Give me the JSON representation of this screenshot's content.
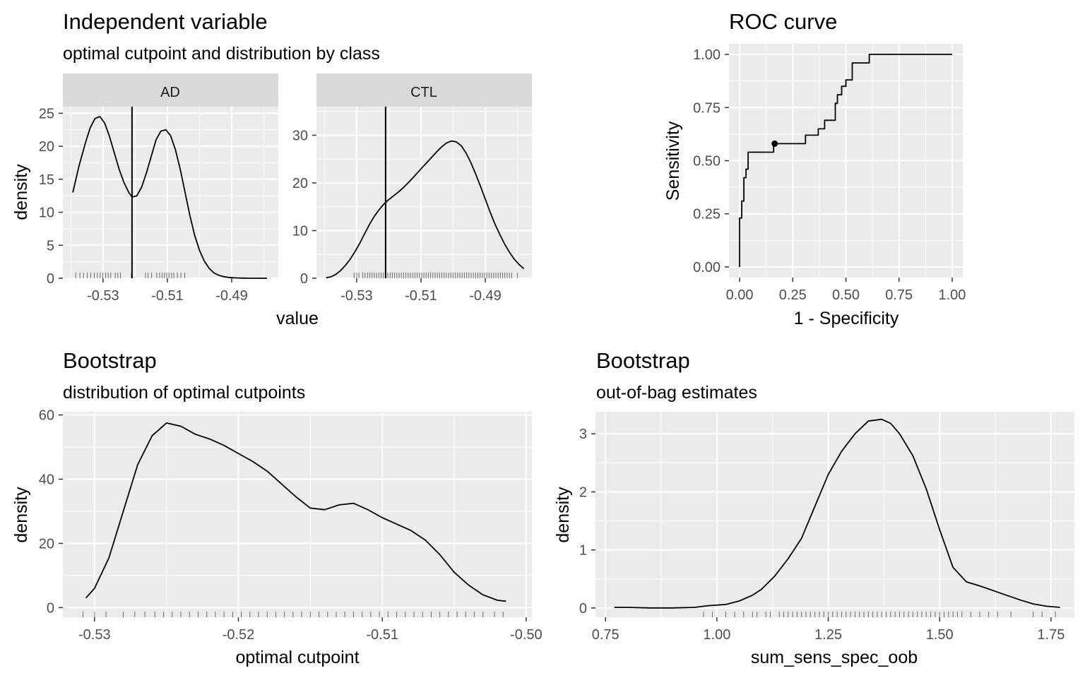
{
  "panels": {
    "indep": {
      "title": "Independent variable",
      "subtitle": "optimal cutpoint and distribution by class",
      "ylabel": "density",
      "xlabel": "value"
    },
    "roc": {
      "title": "ROC curve",
      "xlabel": "1 - Specificity",
      "ylabel": "Sensitivity"
    },
    "boot1": {
      "title": "Bootstrap",
      "subtitle": "distribution of optimal cutpoints",
      "xlabel": "optimal cutpoint",
      "ylabel": "density"
    },
    "boot2": {
      "title": "Bootstrap",
      "subtitle": "out-of-bag estimates",
      "xlabel": "sum_sens_spec_oob",
      "ylabel": "density"
    }
  },
  "chart_data": [
    {
      "id": "ad",
      "type": "area",
      "facet": "AD",
      "optimal_cutpoint": -0.521,
      "xlim": [
        -0.5425,
        -0.4755
      ],
      "ylim": [
        0,
        26
      ],
      "xticks": [
        -0.53,
        -0.51,
        -0.49
      ],
      "xtick_labels": [
        "-0.53",
        "-0.51",
        "-0.49"
      ],
      "yticks": [
        0,
        5,
        10,
        15,
        20,
        25
      ],
      "ytick_labels": [
        "0",
        "5",
        "10",
        "15",
        "20",
        "25"
      ],
      "density": {
        "x": [
          -0.5394,
          -0.5375,
          -0.5355,
          -0.534,
          -0.5325,
          -0.531,
          -0.5295,
          -0.528,
          -0.5265,
          -0.525,
          -0.5235,
          -0.522,
          -0.521,
          -0.5195,
          -0.518,
          -0.5165,
          -0.515,
          -0.5135,
          -0.512,
          -0.5105,
          -0.509,
          -0.5075,
          -0.506,
          -0.5045,
          -0.503,
          -0.5015,
          -0.5,
          -0.4985,
          -0.497,
          -0.4955,
          -0.494,
          -0.4925,
          -0.491,
          -0.4895,
          -0.488,
          -0.4865,
          -0.485,
          -0.4835,
          -0.482,
          -0.479
        ],
        "y": [
          13.0,
          17.0,
          20.5,
          22.8,
          24.2,
          24.5,
          23.5,
          21.5,
          19.0,
          16.5,
          14.5,
          13.0,
          12.3,
          12.5,
          13.8,
          16.0,
          18.5,
          21.0,
          22.3,
          22.5,
          21.6,
          19.5,
          16.5,
          13.0,
          9.5,
          6.5,
          4.2,
          2.6,
          1.5,
          0.8,
          0.45,
          0.25,
          0.13,
          0.07,
          0.04,
          0.02,
          0.01,
          0.0,
          0.0,
          0.0
        ]
      },
      "rug": [
        -0.5385,
        -0.5372,
        -0.5361,
        -0.5349,
        -0.5338,
        -0.5327,
        -0.5318,
        -0.5309,
        -0.5301,
        -0.5292,
        -0.5284,
        -0.5276,
        -0.5262,
        -0.5254,
        -0.5246,
        -0.5212,
        -0.5168,
        -0.516,
        -0.5149,
        -0.5133,
        -0.5124,
        -0.5116,
        -0.5109,
        -0.5102,
        -0.5095,
        -0.5087,
        -0.508,
        -0.5069,
        -0.5058,
        -0.5046
      ]
    },
    {
      "id": "ctl",
      "type": "area",
      "facet": "CTL",
      "optimal_cutpoint": -0.521,
      "xlim": [
        -0.5425,
        -0.4755
      ],
      "ylim": [
        0,
        36
      ],
      "xticks": [
        -0.53,
        -0.51,
        -0.49
      ],
      "xtick_labels": [
        "-0.53",
        "-0.51",
        "-0.49"
      ],
      "yticks": [
        0,
        10,
        20,
        30
      ],
      "ytick_labels": [
        "0",
        "10",
        "20",
        "30"
      ],
      "density": {
        "x": [
          -0.5395,
          -0.538,
          -0.5365,
          -0.535,
          -0.5335,
          -0.532,
          -0.5305,
          -0.529,
          -0.5275,
          -0.526,
          -0.5245,
          -0.523,
          -0.5215,
          -0.52,
          -0.5185,
          -0.517,
          -0.5155,
          -0.514,
          -0.5125,
          -0.511,
          -0.5095,
          -0.508,
          -0.5065,
          -0.505,
          -0.5035,
          -0.502,
          -0.5005,
          -0.499,
          -0.4975,
          -0.496,
          -0.4945,
          -0.493,
          -0.4915,
          -0.49,
          -0.4885,
          -0.487,
          -0.4855,
          -0.484,
          -0.4825,
          -0.481,
          -0.4795,
          -0.478
        ],
        "y": [
          0.1,
          0.3,
          0.8,
          1.6,
          2.7,
          4.0,
          5.6,
          7.4,
          9.4,
          11.3,
          13.0,
          14.4,
          15.6,
          16.5,
          17.3,
          18.1,
          19.0,
          20.0,
          21.1,
          22.2,
          23.3,
          24.4,
          25.5,
          26.6,
          27.6,
          28.4,
          28.8,
          28.6,
          27.8,
          26.3,
          24.3,
          21.9,
          19.3,
          16.6,
          13.9,
          11.4,
          9.2,
          7.2,
          5.5,
          4.0,
          2.9,
          2.0
        ]
      },
      "rug": [
        -0.5308,
        -0.53,
        -0.5293,
        -0.5281,
        -0.5274,
        -0.5266,
        -0.5259,
        -0.5252,
        -0.5245,
        -0.5238,
        -0.5231,
        -0.5224,
        -0.5217,
        -0.521,
        -0.5203,
        -0.5196,
        -0.5189,
        -0.5182,
        -0.5175,
        -0.5168,
        -0.5161,
        -0.5154,
        -0.5147,
        -0.514,
        -0.5133,
        -0.5126,
        -0.5119,
        -0.5112,
        -0.5105,
        -0.5098,
        -0.5091,
        -0.5084,
        -0.5077,
        -0.507,
        -0.5063,
        -0.5056,
        -0.5049,
        -0.5042,
        -0.5035,
        -0.5028,
        -0.5021,
        -0.5014,
        -0.5007,
        -0.5,
        -0.4993,
        -0.4986,
        -0.4979,
        -0.4972,
        -0.4965,
        -0.4958,
        -0.4951,
        -0.4944,
        -0.4937,
        -0.493,
        -0.4923,
        -0.4916,
        -0.4909,
        -0.4902,
        -0.4895,
        -0.4888,
        -0.4881,
        -0.4874,
        -0.4867,
        -0.486,
        -0.4853,
        -0.4846,
        -0.4839,
        -0.4832,
        -0.4825,
        -0.4818,
        -0.48
      ]
    },
    {
      "id": "roc",
      "type": "line",
      "xlim": [
        -0.05,
        1.05
      ],
      "ylim": [
        -0.05,
        1.05
      ],
      "xticks": [
        0,
        0.25,
        0.5,
        0.75,
        1
      ],
      "xtick_labels": [
        "0.00",
        "0.25",
        "0.50",
        "0.75",
        "1.00"
      ],
      "yticks": [
        0,
        0.25,
        0.5,
        0.75,
        1
      ],
      "ytick_labels": [
        "0.00",
        "0.25",
        "0.50",
        "0.75",
        "1.00"
      ],
      "curve": {
        "x": [
          0,
          0,
          0.01,
          0.01,
          0.02,
          0.02,
          0.03,
          0.03,
          0.04,
          0.04,
          0.16,
          0.16,
          0.17,
          0.17,
          0.31,
          0.31,
          0.37,
          0.37,
          0.4,
          0.4,
          0.45,
          0.45,
          0.46,
          0.46,
          0.48,
          0.48,
          0.5,
          0.5,
          0.53,
          0.53,
          0.61,
          0.61,
          1.0
        ],
        "y": [
          0,
          0.23,
          0.23,
          0.31,
          0.31,
          0.42,
          0.42,
          0.46,
          0.46,
          0.54,
          0.54,
          0.58,
          0.58,
          0.58,
          0.58,
          0.62,
          0.62,
          0.65,
          0.65,
          0.69,
          0.69,
          0.77,
          0.77,
          0.81,
          0.81,
          0.85,
          0.85,
          0.88,
          0.88,
          0.96,
          0.96,
          1.0,
          1.0
        ]
      },
      "optimal_point": {
        "x": 0.165,
        "y": 0.58
      }
    },
    {
      "id": "boot1",
      "type": "area",
      "xlim": [
        -0.5322,
        -0.4996
      ],
      "ylim": [
        -3,
        61
      ],
      "xticks": [
        -0.53,
        -0.52,
        -0.51,
        -0.5
      ],
      "xtick_labels": [
        "-0.53",
        "-0.52",
        "-0.51",
        "-0.50"
      ],
      "yticks": [
        0,
        20,
        40,
        60
      ],
      "ytick_labels": [
        "0",
        "20",
        "40",
        "60"
      ],
      "density": {
        "x": [
          -0.5306,
          -0.53,
          -0.529,
          -0.528,
          -0.527,
          -0.526,
          -0.525,
          -0.524,
          -0.523,
          -0.522,
          -0.521,
          -0.52,
          -0.519,
          -0.518,
          -0.517,
          -0.516,
          -0.515,
          -0.514,
          -0.513,
          -0.512,
          -0.511,
          -0.51,
          -0.509,
          -0.508,
          -0.507,
          -0.506,
          -0.505,
          -0.504,
          -0.503,
          -0.502,
          -0.5014
        ],
        "y": [
          3.0,
          6.0,
          15.5,
          30.0,
          44.5,
          53.5,
          57.5,
          56.5,
          54.0,
          52.5,
          50.5,
          48.0,
          45.5,
          42.5,
          38.5,
          34.5,
          31.0,
          30.5,
          32.0,
          32.5,
          30.5,
          28.0,
          26.0,
          24.0,
          21.0,
          16.5,
          11.0,
          7.0,
          4.0,
          2.3,
          2.0
        ]
      },
      "rug": [
        -0.5308,
        -0.53,
        -0.5292,
        -0.528,
        -0.5272,
        -0.5265,
        -0.5258,
        -0.5252,
        -0.5246,
        -0.524,
        -0.5234,
        -0.5228,
        -0.5222,
        -0.5216,
        -0.521,
        -0.5204,
        -0.5198,
        -0.5192,
        -0.5186,
        -0.518,
        -0.5174,
        -0.5168,
        -0.5162,
        -0.5156,
        -0.515,
        -0.5144,
        -0.5138,
        -0.5132,
        -0.5126,
        -0.512,
        -0.5114,
        -0.5108,
        -0.5102,
        -0.5096,
        -0.509,
        -0.5084,
        -0.5078,
        -0.5072,
        -0.5066,
        -0.506,
        -0.5054,
        -0.5048,
        -0.5042,
        -0.5036,
        -0.503,
        -0.5022,
        -0.5016
      ]
    },
    {
      "id": "boot2",
      "type": "area",
      "xlim": [
        0.7275,
        1.8025
      ],
      "ylim": [
        -0.16,
        3.38
      ],
      "xticks": [
        0.75,
        1.0,
        1.25,
        1.5,
        1.75
      ],
      "xtick_labels": [
        "0.75",
        "1.00",
        "1.25",
        "1.50",
        "1.75"
      ],
      "yticks": [
        0,
        1,
        2,
        3
      ],
      "ytick_labels": [
        "0",
        "1",
        "2",
        "3"
      ],
      "density": {
        "x": [
          0.77,
          0.8,
          0.85,
          0.9,
          0.95,
          0.98,
          1.02,
          1.05,
          1.08,
          1.1,
          1.13,
          1.16,
          1.19,
          1.22,
          1.25,
          1.28,
          1.31,
          1.34,
          1.37,
          1.39,
          1.41,
          1.44,
          1.47,
          1.5,
          1.53,
          1.56,
          1.59,
          1.62,
          1.65,
          1.68,
          1.71,
          1.74,
          1.77
        ],
        "y": [
          0.01,
          0.01,
          0.0,
          0.0,
          0.01,
          0.04,
          0.06,
          0.12,
          0.22,
          0.32,
          0.55,
          0.85,
          1.2,
          1.75,
          2.3,
          2.7,
          3.0,
          3.22,
          3.25,
          3.18,
          3.0,
          2.62,
          2.05,
          1.35,
          0.7,
          0.45,
          0.38,
          0.3,
          0.22,
          0.14,
          0.07,
          0.03,
          0.01
        ]
      },
      "rug": [
        0.97,
        0.99,
        1.02,
        1.04,
        1.06,
        1.08,
        1.09,
        1.11,
        1.12,
        1.14,
        1.15,
        1.16,
        1.17,
        1.18,
        1.19,
        1.2,
        1.21,
        1.22,
        1.23,
        1.24,
        1.25,
        1.26,
        1.27,
        1.28,
        1.29,
        1.3,
        1.31,
        1.32,
        1.33,
        1.34,
        1.35,
        1.36,
        1.37,
        1.38,
        1.39,
        1.4,
        1.41,
        1.42,
        1.43,
        1.44,
        1.45,
        1.46,
        1.47,
        1.48,
        1.49,
        1.5,
        1.51,
        1.52,
        1.53,
        1.54,
        1.55,
        1.57,
        1.59,
        1.61,
        1.63,
        1.66,
        1.71,
        1.73,
        1.76
      ]
    }
  ]
}
